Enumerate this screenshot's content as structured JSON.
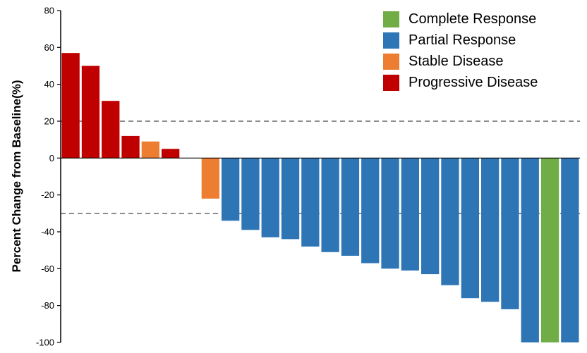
{
  "chart_data": {
    "type": "bar",
    "subtype": "waterfall",
    "title": "",
    "xlabel": "",
    "ylabel": "Percent Change from Baseline(%)",
    "ylim": [
      -100,
      80
    ],
    "yticks": [
      80,
      60,
      40,
      20,
      0,
      -20,
      -40,
      -60,
      -80,
      -100
    ],
    "threshold_lines": [
      20,
      -30
    ],
    "grid": false,
    "legend_position": "top-right",
    "legend": [
      {
        "label": "Complete Response",
        "color": "#70AD47"
      },
      {
        "label": "Partial Response",
        "color": "#2E75B6"
      },
      {
        "label": "Stable Disease",
        "color": "#ED7D31"
      },
      {
        "label": "Progressive Disease",
        "color": "#C00000"
      }
    ],
    "gap_after_index": 5,
    "bars": [
      {
        "value": 57,
        "category": "Progressive Disease"
      },
      {
        "value": 50,
        "category": "Progressive Disease"
      },
      {
        "value": 31,
        "category": "Progressive Disease"
      },
      {
        "value": 12,
        "category": "Progressive Disease"
      },
      {
        "value": 9,
        "category": "Stable Disease"
      },
      {
        "value": 5,
        "category": "Progressive Disease"
      },
      {
        "value": -22,
        "category": "Stable Disease"
      },
      {
        "value": -34,
        "category": "Partial Response"
      },
      {
        "value": -39,
        "category": "Partial Response"
      },
      {
        "value": -43,
        "category": "Partial Response"
      },
      {
        "value": -44,
        "category": "Partial Response"
      },
      {
        "value": -48,
        "category": "Partial Response"
      },
      {
        "value": -51,
        "category": "Partial Response"
      },
      {
        "value": -53,
        "category": "Partial Response"
      },
      {
        "value": -57,
        "category": "Partial Response"
      },
      {
        "value": -60,
        "category": "Partial Response"
      },
      {
        "value": -61,
        "category": "Partial Response"
      },
      {
        "value": -63,
        "category": "Partial Response"
      },
      {
        "value": -69,
        "category": "Partial Response"
      },
      {
        "value": -76,
        "category": "Partial Response"
      },
      {
        "value": -78,
        "category": "Partial Response"
      },
      {
        "value": -82,
        "category": "Partial Response"
      },
      {
        "value": -100,
        "category": "Partial Response"
      },
      {
        "value": -100,
        "category": "Complete Response"
      },
      {
        "value": -100,
        "category": "Partial Response"
      }
    ]
  }
}
